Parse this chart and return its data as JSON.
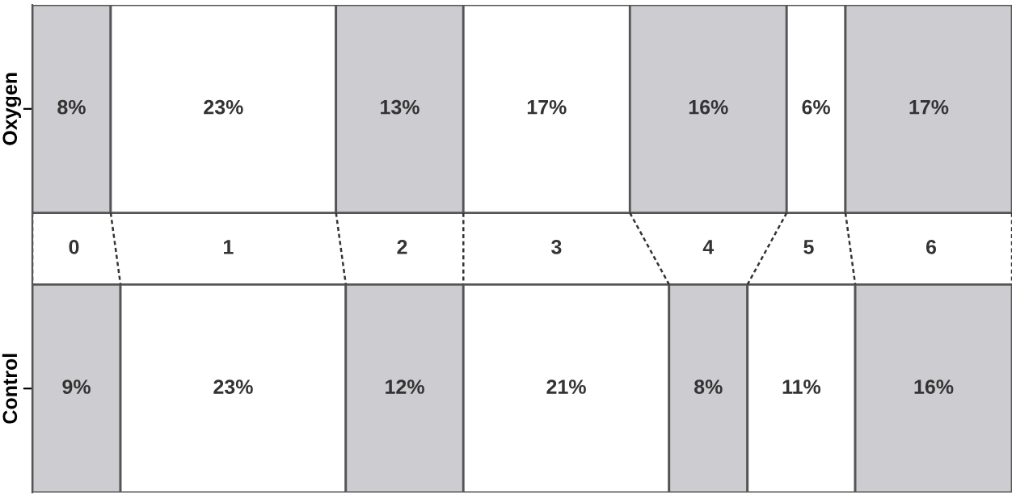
{
  "chart_data": {
    "type": "bar",
    "orientation": "horizontal",
    "stacked": true,
    "categories": [
      "Oxygen",
      "Control"
    ],
    "xlim": [
      0,
      100
    ],
    "tick_labels": "y",
    "grid": false,
    "legend": false,
    "series": [
      {
        "name": "0",
        "color": "#cdcdd1",
        "values": [
          8,
          9
        ],
        "value_labels": [
          "8%",
          "9%"
        ]
      },
      {
        "name": "1",
        "color": "#ffffff",
        "values": [
          23,
          23
        ],
        "value_labels": [
          "23%",
          "23%"
        ]
      },
      {
        "name": "2",
        "color": "#cdcdd1",
        "values": [
          13,
          12
        ],
        "value_labels": [
          "13%",
          "12%"
        ]
      },
      {
        "name": "3",
        "color": "#ffffff",
        "values": [
          17,
          21
        ],
        "value_labels": [
          "17%",
          "21%"
        ]
      },
      {
        "name": "4",
        "color": "#cdcdd1",
        "values": [
          16,
          8
        ],
        "value_labels": [
          "16%",
          "8%"
        ]
      },
      {
        "name": "5",
        "color": "#ffffff",
        "values": [
          6,
          11
        ],
        "value_labels": [
          "6%",
          "11%"
        ]
      },
      {
        "name": "6",
        "color": "#cdcdd1",
        "values": [
          17,
          16
        ],
        "value_labels": [
          "17%",
          "16%"
        ]
      }
    ]
  }
}
